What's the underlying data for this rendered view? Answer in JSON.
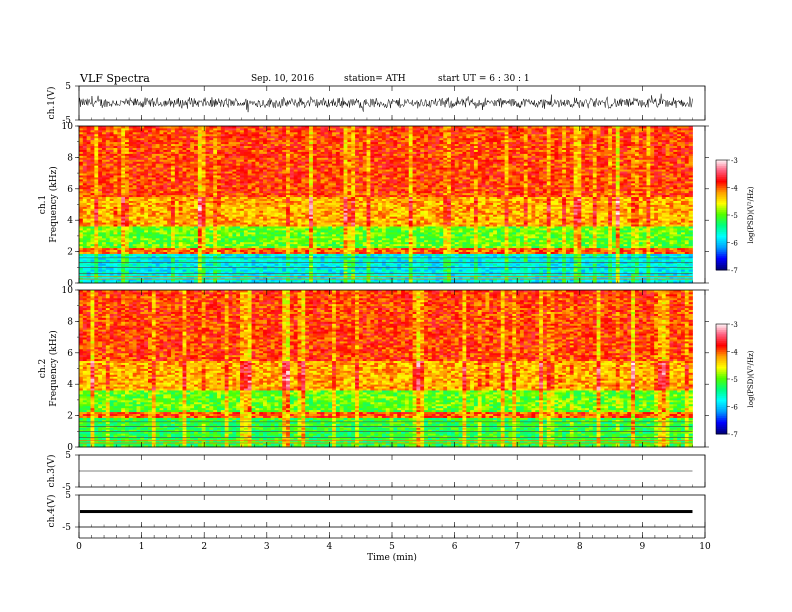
{
  "header": {
    "title": "VLF  Spectra",
    "date": "Sep. 10, 2016",
    "station": "station= ATH",
    "start": "start  UT  =   6  : 30 : 1"
  },
  "chart_data": [
    {
      "type": "line",
      "panel": "ch1-waveform",
      "ylabel": "ch.1(V)",
      "ylim": [
        -5,
        5
      ],
      "yticks": [
        "5",
        "-5"
      ],
      "description_values": {
        "baseline": 0,
        "amplitude_approx": 1.5
      }
    },
    {
      "type": "heatmap",
      "panel": "ch1-spectrogram",
      "ylabel": [
        "ch.1",
        "Frequency  (kHz)"
      ],
      "ylim": [
        0,
        10
      ],
      "yticks": [
        "0",
        "2",
        "4",
        "6",
        "8",
        "10"
      ],
      "colorbar": {
        "label": "log(PSD)(V²/Hz)",
        "range": [
          -7,
          -3
        ],
        "ticks": [
          "-3",
          "-4",
          "-5",
          "-6",
          "-7"
        ]
      },
      "bands": [
        {
          "fmin": 0,
          "fmax": 1.9,
          "level": -5.8
        },
        {
          "fmin": 1.9,
          "fmax": 2.3,
          "level": -4.0
        },
        {
          "fmin": 2.3,
          "fmax": 3.6,
          "level": -5.0
        },
        {
          "fmin": 3.6,
          "fmax": 5.5,
          "level": -4.3
        },
        {
          "fmin": 5.5,
          "fmax": 10,
          "level": -3.9
        }
      ]
    },
    {
      "type": "heatmap",
      "panel": "ch2-spectrogram",
      "ylabel": [
        "ch.2",
        "Frequency  (kHz)"
      ],
      "ylim": [
        0,
        10
      ],
      "yticks": [
        "0",
        "2",
        "4",
        "6",
        "8",
        "10"
      ],
      "colorbar": {
        "label": "log(PSD)(V²/Hz)",
        "range": [
          -7,
          -3
        ],
        "ticks": [
          "-3",
          "-4",
          "-5",
          "-6",
          "-7"
        ]
      },
      "bands": [
        {
          "fmin": 0,
          "fmax": 1.9,
          "level": -5.2
        },
        {
          "fmin": 1.9,
          "fmax": 2.3,
          "level": -4.0
        },
        {
          "fmin": 2.3,
          "fmax": 3.6,
          "level": -5.0
        },
        {
          "fmin": 3.6,
          "fmax": 5.5,
          "level": -4.3
        },
        {
          "fmin": 5.5,
          "fmax": 10,
          "level": -3.9
        }
      ]
    },
    {
      "type": "line",
      "panel": "ch3-waveform",
      "ylabel": "ch.3(V)",
      "ylim": [
        -5,
        5
      ],
      "yticks": [
        "5",
        "-5"
      ],
      "description_values": {
        "baseline": 0,
        "amplitude_approx": 0
      }
    },
    {
      "type": "line",
      "panel": "ch4-waveform",
      "ylabel": "ch.4(V)",
      "ylim": [
        -5,
        5
      ],
      "yticks": [
        "5",
        "-5"
      ],
      "description_values": {
        "baseline": 0,
        "amplitude_approx": 0.3
      }
    }
  ],
  "xaxis": {
    "label": "Time  (min)",
    "xlim": [
      0,
      10
    ],
    "ticks": [
      "0",
      "1",
      "2",
      "3",
      "4",
      "5",
      "6",
      "7",
      "8",
      "9",
      "10"
    ],
    "data_end": 9.8
  },
  "colors": {
    "scale": [
      "#00007a",
      "#0000ff",
      "#00a0ff",
      "#00ffff",
      "#00ff7f",
      "#50ff00",
      "#ffff00",
      "#ffa000",
      "#ff0000",
      "#ff6080",
      "#ffffff"
    ]
  }
}
